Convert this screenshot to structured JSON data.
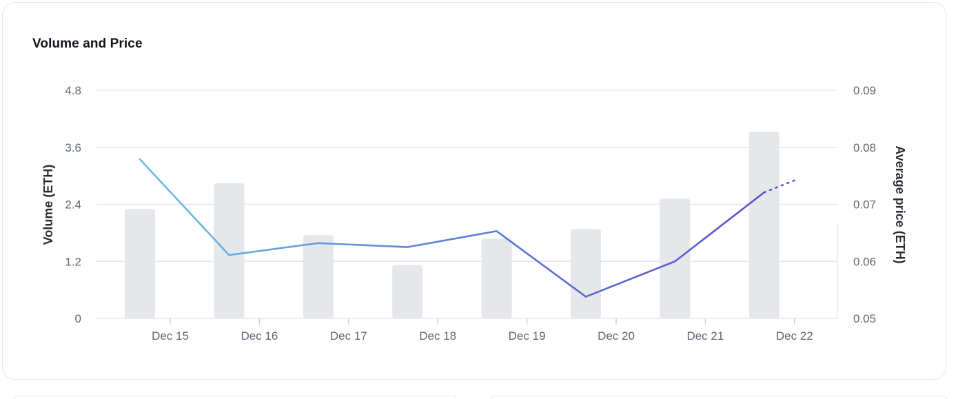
{
  "card": {
    "title": "Volume and Price"
  },
  "colors": {
    "bar": "#e6e7eb",
    "grid": "#e6e7eb",
    "line_start": "#6cc0e5",
    "line_mid": "#5b84d6",
    "line_end": "#5b4fd1"
  },
  "chart_data": {
    "type": "bar",
    "categories": [
      "Dec 15",
      "Dec 16",
      "Dec 17",
      "Dec 18",
      "Dec 19",
      "Dec 20",
      "Dec 21",
      "Dec 22"
    ],
    "series": [
      {
        "type": "bar",
        "axis": "left",
        "values": [
          2.3,
          2.85,
          1.75,
          1.12,
          1.68,
          1.88,
          2.52,
          3.93
        ]
      },
      {
        "type": "line",
        "axis": "right",
        "values": [
          0.0779,
          0.0611,
          0.0632,
          0.0625,
          0.0653,
          0.0538,
          0.06,
          0.0721
        ],
        "projected_last": 0.0744
      }
    ],
    "ylabel": "Volume (ETH)",
    "y2label": "Average price (ETH)",
    "ylim": [
      0,
      4.8
    ],
    "y2lim": [
      0.05,
      0.09
    ],
    "yticks": [
      "0",
      "1.2",
      "2.4",
      "3.6",
      "4.8"
    ],
    "y2ticks": [
      "0.05",
      "0.06",
      "0.07",
      "0.08",
      "0.09"
    ],
    "grid": true
  }
}
